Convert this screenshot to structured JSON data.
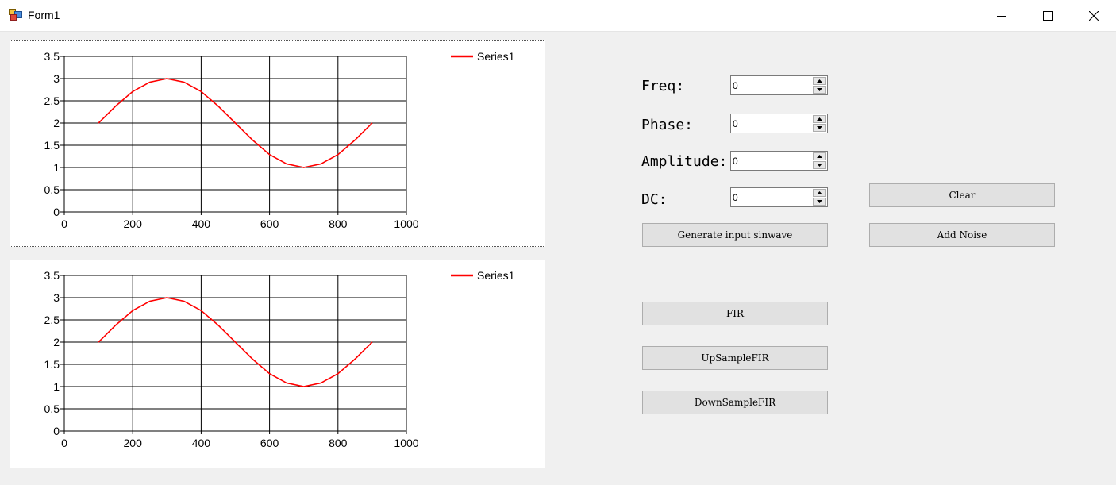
{
  "window": {
    "title": "Form1",
    "icons": {
      "app": "winforms-app-icon",
      "minimize": "minimize-icon",
      "maximize": "maximize-icon",
      "close": "close-icon"
    }
  },
  "form": {
    "freq_label": "Freq:",
    "freq_value": "0",
    "phase_label": "Phase:",
    "phase_value": "0",
    "amplitude_label": "Amplitude:",
    "amplitude_value": "0",
    "dc_label": "DC:",
    "dc_value": "0"
  },
  "buttons": {
    "clear": "Clear",
    "generate": "Generate input sinwave",
    "add_noise": "Add Noise",
    "fir": "FIR",
    "upsample_fir": "UpSampleFIR",
    "downsample_fir": "DownSampleFIR"
  },
  "colors": {
    "series": "#ff0000",
    "grid": "#000000"
  },
  "chart_data": [
    {
      "type": "line",
      "xlim": [
        0,
        1000
      ],
      "ylim": [
        0,
        3.5
      ],
      "x_ticks": [
        "0",
        "200",
        "400",
        "600",
        "800",
        "1000"
      ],
      "y_ticks": [
        "0",
        "0.5",
        "1",
        "1.5",
        "2",
        "2.5",
        "3",
        "3.5"
      ],
      "grid": true,
      "legend": "top-right",
      "series": [
        {
          "name": "Series1",
          "x": [
            100,
            150,
            200,
            250,
            300,
            350,
            400,
            450,
            500,
            550,
            600,
            650,
            700,
            750,
            800,
            850,
            900
          ],
          "y": [
            2.0,
            2.38,
            2.71,
            2.92,
            3.0,
            2.92,
            2.71,
            2.38,
            2.0,
            1.62,
            1.29,
            1.08,
            1.0,
            1.08,
            1.29,
            1.62,
            2.0
          ]
        }
      ]
    },
    {
      "type": "line",
      "xlim": [
        0,
        1000
      ],
      "ylim": [
        0,
        3.5
      ],
      "x_ticks": [
        "0",
        "200",
        "400",
        "600",
        "800",
        "1000"
      ],
      "y_ticks": [
        "0",
        "0.5",
        "1",
        "1.5",
        "2",
        "2.5",
        "3",
        "3.5"
      ],
      "grid": true,
      "legend": "top-right",
      "series": [
        {
          "name": "Series1",
          "x": [
            100,
            150,
            200,
            250,
            300,
            350,
            400,
            450,
            500,
            550,
            600,
            650,
            700,
            750,
            800,
            850,
            900
          ],
          "y": [
            2.0,
            2.38,
            2.71,
            2.92,
            3.0,
            2.92,
            2.71,
            2.38,
            2.0,
            1.62,
            1.29,
            1.08,
            1.0,
            1.08,
            1.29,
            1.62,
            2.0
          ]
        }
      ]
    }
  ]
}
